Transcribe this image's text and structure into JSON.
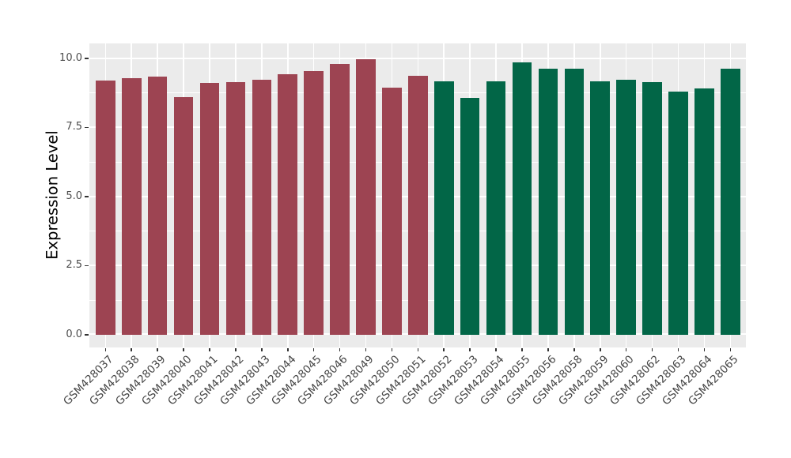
{
  "figure": {
    "background_color": "#FFFFFF",
    "panel_background_color": "#EBEBEB",
    "grid_color": "#FFFFFF",
    "tick_mark_color": "#333333",
    "axis_text_color": "#4D4D4D",
    "axis_title_color": "#000000"
  },
  "chart_data": {
    "type": "bar",
    "title": "",
    "xlabel": "",
    "ylabel": "Expression Level",
    "ylim": [
      0,
      10.5
    ],
    "ytick_labels": [
      "0.0",
      "2.5",
      "5.0",
      "7.5",
      "10.0"
    ],
    "ytick_values": [
      0,
      2.5,
      5,
      7.5,
      10
    ],
    "minor_ytick_values": [
      1.25,
      3.75,
      6.25,
      8.75
    ],
    "grid": "white major and minor horizontal lines plus vertical major lines on grey panel",
    "legend_position": "none",
    "x_label_rotation_deg": 45,
    "categories": [
      "GSM428037",
      "GSM428038",
      "GSM428039",
      "GSM428040",
      "GSM428041",
      "GSM428042",
      "GSM428043",
      "GSM428044",
      "GSM428045",
      "GSM428046",
      "GSM428049",
      "GSM428050",
      "GSM428051",
      "GSM428052",
      "GSM428053",
      "GSM428054",
      "GSM428055",
      "GSM428056",
      "GSM428058",
      "GSM428059",
      "GSM428060",
      "GSM428062",
      "GSM428063",
      "GSM428064",
      "GSM428065"
    ],
    "values": [
      9.19,
      9.27,
      9.33,
      8.6,
      9.12,
      9.15,
      9.22,
      9.41,
      9.55,
      9.8,
      9.96,
      8.93,
      9.38,
      9.17,
      8.56,
      9.17,
      9.84,
      9.63,
      9.63,
      9.16,
      9.23,
      9.14,
      8.79,
      8.92,
      9.62
    ],
    "bar_group_ids": [
      "group1",
      "group1",
      "group1",
      "group1",
      "group1",
      "group1",
      "group1",
      "group1",
      "group1",
      "group1",
      "group1",
      "group1",
      "group1",
      "group2",
      "group2",
      "group2",
      "group2",
      "group2",
      "group2",
      "group2",
      "group2",
      "group2",
      "group2",
      "group2",
      "group2"
    ],
    "group_colors": {
      "group1": "#9D4452",
      "group2": "#026647"
    }
  }
}
